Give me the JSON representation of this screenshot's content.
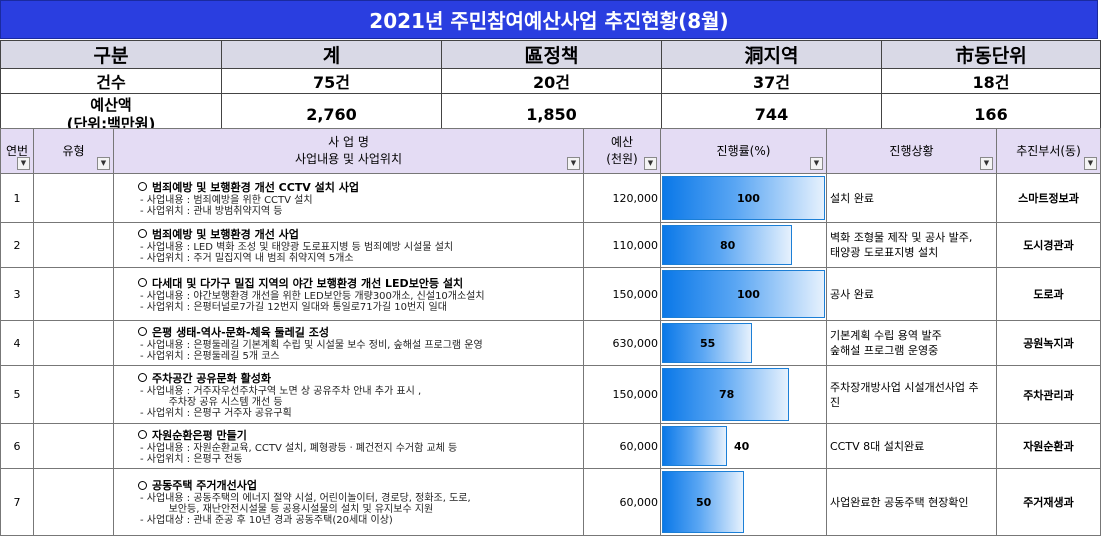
{
  "title": "2021년 주민참여예산사업 추진현황(8월)",
  "summary": {
    "headers": [
      "구분",
      "계",
      "區정책",
      "洞지역",
      "市동단위"
    ],
    "count": {
      "label": "건수",
      "values": [
        "75건",
        "20건",
        "37건",
        "18건"
      ]
    },
    "budget": {
      "label1": "예산액",
      "label2": "(단위:백만원)",
      "values": [
        "2,760",
        "1,850",
        "744",
        "166"
      ]
    }
  },
  "columns": {
    "no": "연번",
    "type": "유형",
    "project_1": "사 업 명",
    "project_2": "사업내용 및 사업위치",
    "budget_1": "예산",
    "budget_2": "(천원)",
    "rate": "진행률(%)",
    "status": "진행상황",
    "dept": "추진부서(동)"
  },
  "rows": [
    {
      "no": "1",
      "type": "",
      "title": "범죄예방 및 보행환경 개선 CCTV 설치 사업",
      "lines": [
        "- 사업내용 : 범죄예방을 위한 CCTV 설치",
        "- 사업위치 : 관내 방범취약지역 등"
      ],
      "budget": "120,000",
      "rate": 100,
      "rate_label": "100",
      "status": [
        "설치 완료"
      ],
      "dept": "스마트정보과"
    },
    {
      "no": "2",
      "type": "",
      "title": "범죄예방 및 보행환경 개선 사업",
      "lines": [
        "- 사업내용 : LED 벽화 조성 및 태양광 도로표지병 등 범죄예방 시설물 설치",
        "- 사업위치 : 주거 밀집지역 내 범죄 취약지역 5개소"
      ],
      "budget": "110,000",
      "rate": 80,
      "rate_label": "80",
      "status": [
        "벽화 조형물 제작 및 공사 발주,",
        "태양광 도로표지병 설치"
      ],
      "dept": "도시경관과"
    },
    {
      "no": "3",
      "type": "",
      "title": "다세대 및 다가구 밀집 지역의 야간 보행환경 개선 LED보안등 설치",
      "lines": [
        "- 사업내용 : 야간보행환경 개선을 위한 LED보안등 개량300개소, 신설10개소설치",
        "- 사업위치 : 은평터널로7가길 12번지 일대와 통일로71가길 10번지 일대"
      ],
      "budget": "150,000",
      "rate": 100,
      "rate_label": "100",
      "status": [
        "공사 완료"
      ],
      "dept": "도로과"
    },
    {
      "no": "4",
      "type": "",
      "title": "은평 생태-역사-문화-체육 둘레길 조성",
      "lines": [
        "- 사업내용 : 은평둘레길 기본계획 수립 및 시설물 보수 정비, 숲해설 프로그램 운영",
        "- 사업위치 : 은평둘레길 5개 코스"
      ],
      "budget": "630,000",
      "rate": 55,
      "rate_label": "55",
      "status": [
        "기본계획 수립 용역 발주",
        "숲해설 프로그램 운영중"
      ],
      "dept": "공원녹지과"
    },
    {
      "no": "5",
      "type": "",
      "title": "주차공간 공유문화 활성화",
      "lines": [
        "- 사업내용 : 거주자우선주차구역 노면 상 공유주차 안내 추가 표시 ,",
        "         주차장 공유 시스템 개선 등",
        "- 사업위치 : 은평구 거주자 공유구획"
      ],
      "budget": "150,000",
      "rate": 78,
      "rate_label": "78",
      "status": [
        "주차장개방사업 시설개선사업 추",
        "진"
      ],
      "dept": "주차관리과"
    },
    {
      "no": "6",
      "type": "",
      "title": "자원순환은평 만들기",
      "lines": [
        "- 사업내용 : 자원순환교육, CCTV 설치, 폐형광등ㆍ폐건전지 수거함 교체 등",
        "- 사업위치 : 은평구 전동"
      ],
      "budget": "60,000",
      "rate": 40,
      "rate_label": "40",
      "status": [
        "CCTV 8대 설치완료"
      ],
      "dept": "자원순환과"
    },
    {
      "no": "7",
      "type": "",
      "title": "공동주택 주거개선사업",
      "lines": [
        "- 사업내용 : 공동주택의 에너지 절약 시설, 어린이놀이터, 경로당, 정화조, 도로,",
        "         보안등, 재난안전시설물 등 공용시설물의 설치 및 유지보수 지원",
        "- 사업대상 : 관내 준공 후 10년 경과 공동주택(20세대 이상)"
      ],
      "budget": "60,000",
      "rate": 50,
      "rate_label": "50",
      "status": [
        "사업완료한 공동주택 현장확인"
      ],
      "dept": "주거재생과"
    }
  ]
}
